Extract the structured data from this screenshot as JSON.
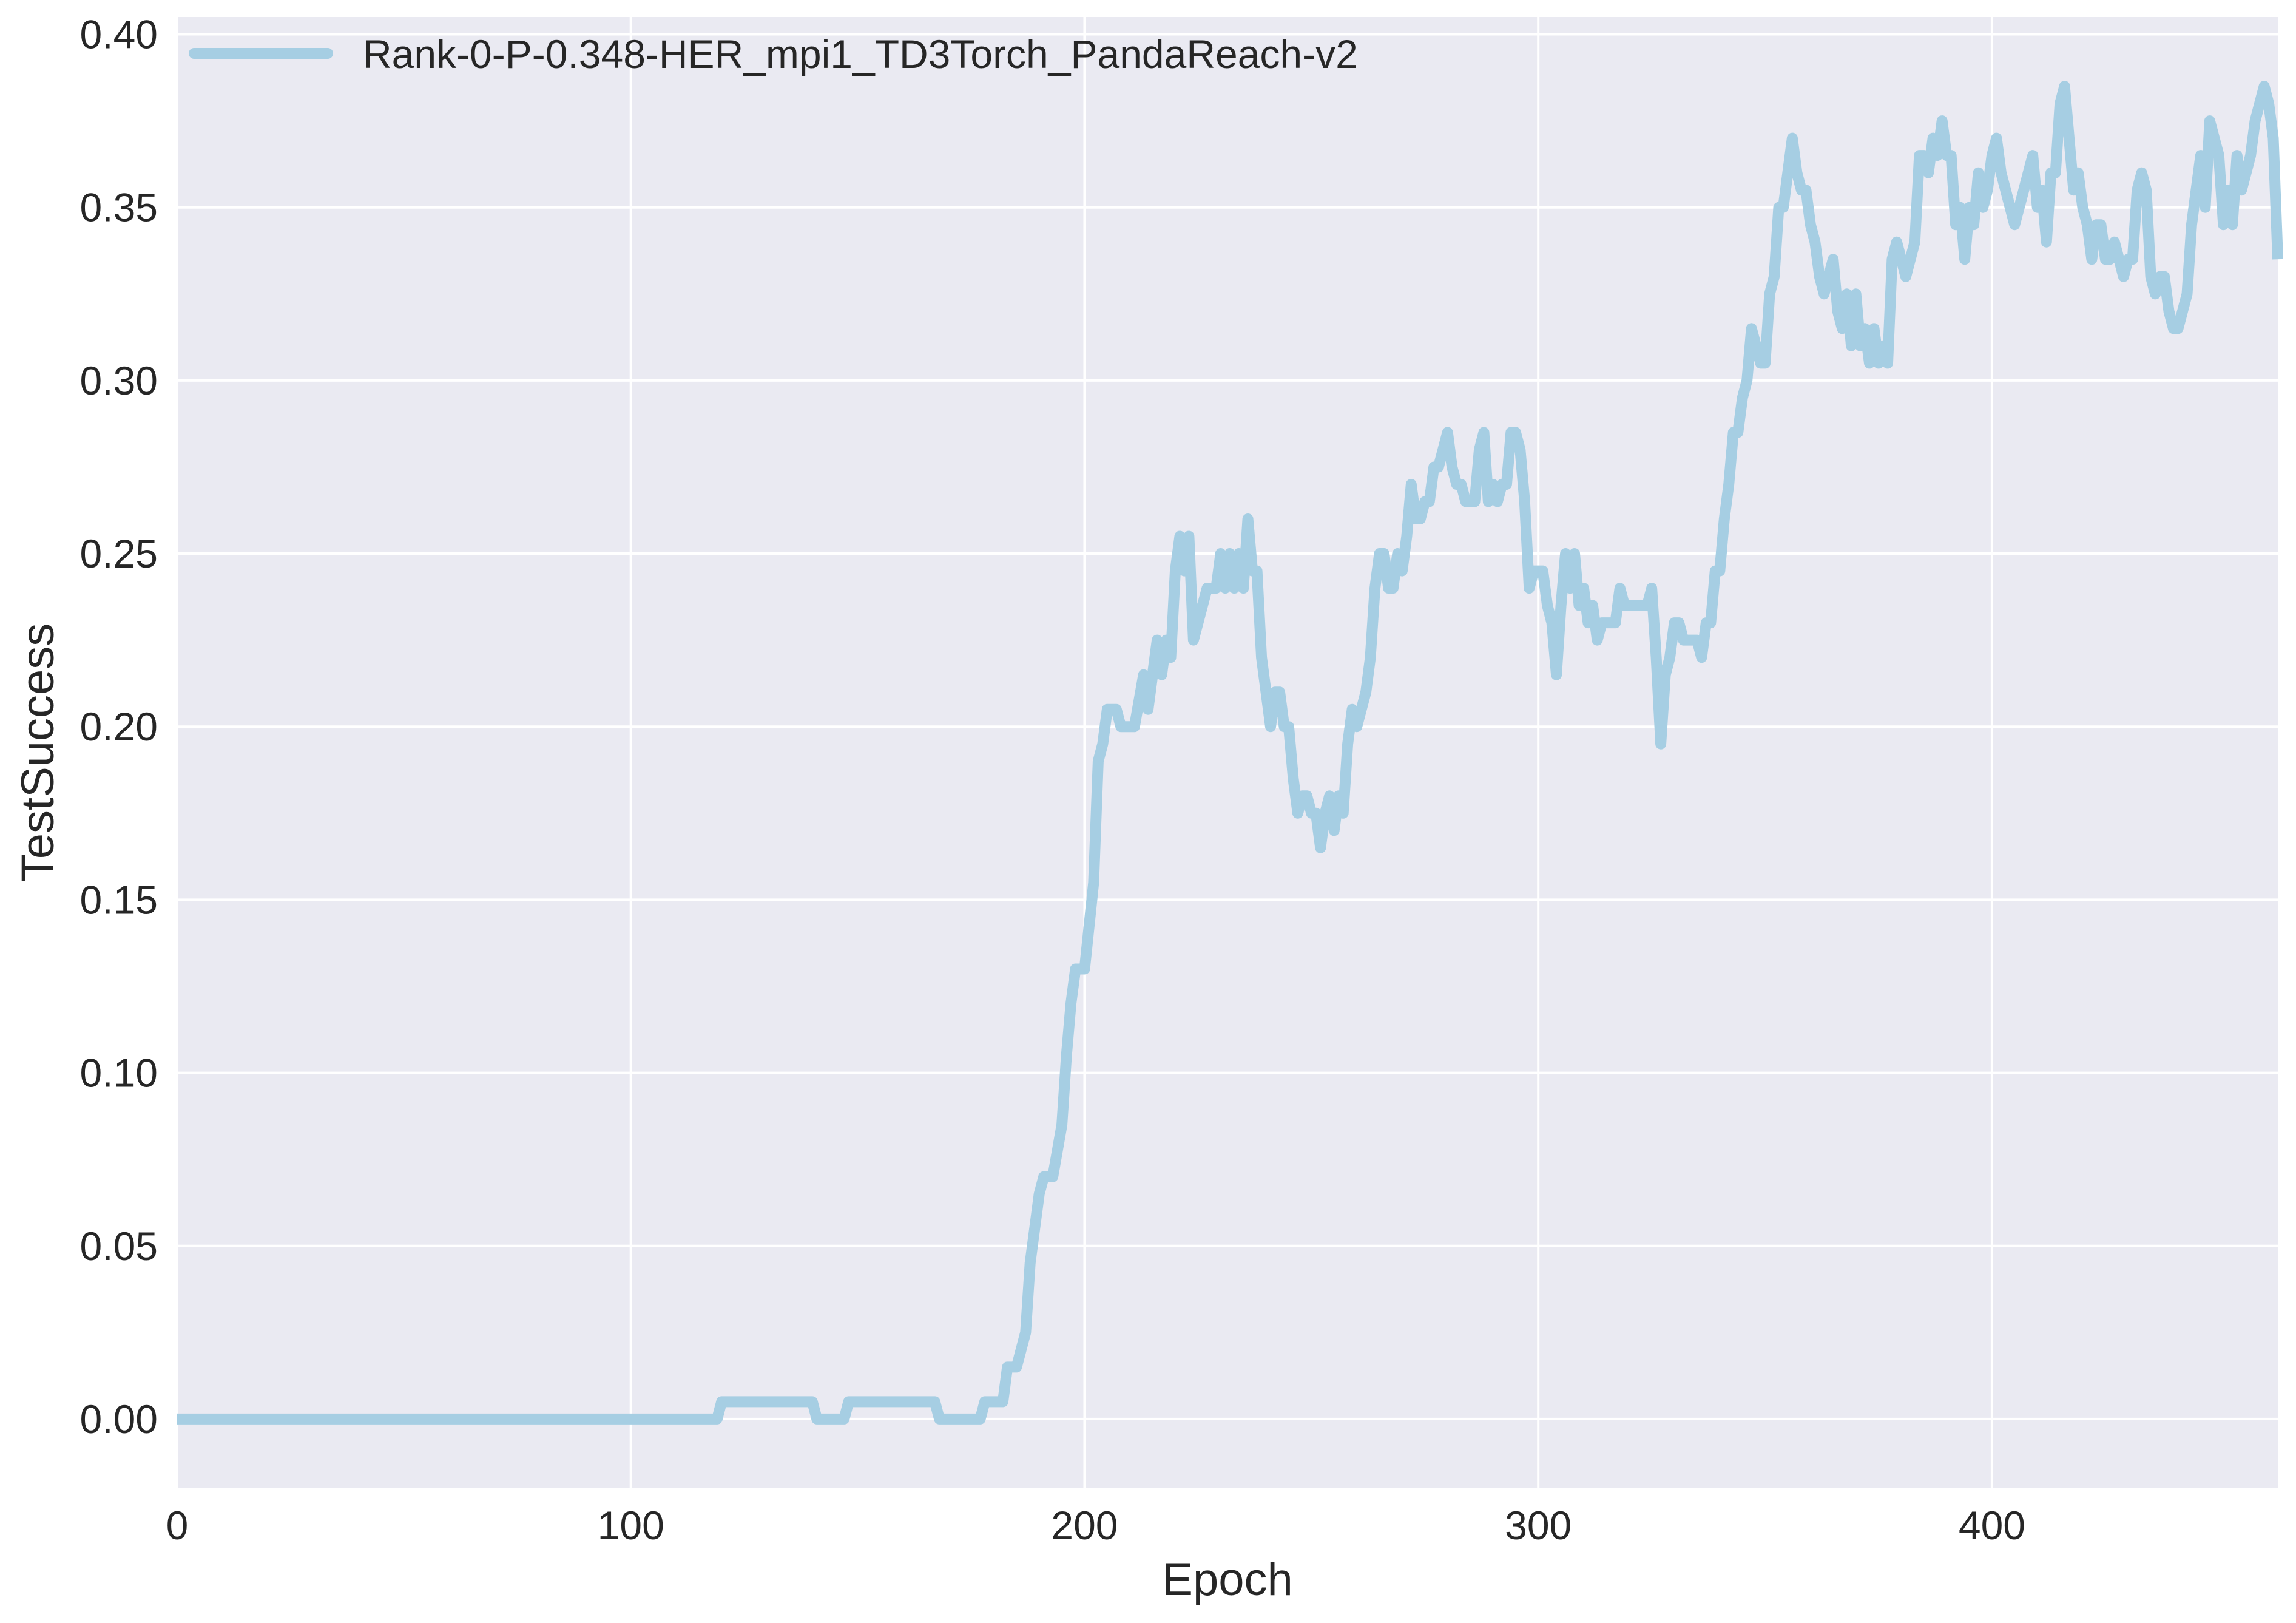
{
  "chart_data": {
    "type": "line",
    "xlabel": "Epoch",
    "ylabel": "TestSuccess",
    "xlim": [
      0,
      463
    ],
    "ylim": [
      -0.02,
      0.405
    ],
    "x_ticks": [
      0,
      100,
      200,
      300,
      400
    ],
    "y_ticks": [
      0.0,
      0.05,
      0.1,
      0.15,
      0.2,
      0.25,
      0.3,
      0.35,
      0.4
    ],
    "y_tick_labels": [
      "0.00",
      "0.05",
      "0.10",
      "0.15",
      "0.20",
      "0.25",
      "0.30",
      "0.35",
      "0.40"
    ],
    "grid": true,
    "legend_position": "top-left",
    "background": "#eaeaf2",
    "series": [
      {
        "name": "Rank-0-P-0.348-HER_mpi1_TD3Torch_PandaReach-v2",
        "color": "#a6cee3",
        "points": [
          [
            0,
            0.0
          ],
          [
            119,
            0.0
          ],
          [
            120,
            0.005
          ],
          [
            140,
            0.005
          ],
          [
            141,
            0.0
          ],
          [
            147,
            0.0
          ],
          [
            148,
            0.005
          ],
          [
            167,
            0.005
          ],
          [
            168,
            0.0
          ],
          [
            177,
            0.0
          ],
          [
            178,
            0.005
          ],
          [
            182,
            0.005
          ],
          [
            183,
            0.015
          ],
          [
            185,
            0.015
          ],
          [
            187,
            0.025
          ],
          [
            188,
            0.045
          ],
          [
            190,
            0.065
          ],
          [
            191,
            0.07
          ],
          [
            193,
            0.07
          ],
          [
            195,
            0.085
          ],
          [
            196,
            0.105
          ],
          [
            197,
            0.12
          ],
          [
            198,
            0.13
          ],
          [
            200,
            0.13
          ],
          [
            202,
            0.155
          ],
          [
            203,
            0.19
          ],
          [
            204,
            0.195
          ],
          [
            205,
            0.205
          ],
          [
            207,
            0.205
          ],
          [
            208,
            0.2
          ],
          [
            211,
            0.2
          ],
          [
            213,
            0.215
          ],
          [
            214,
            0.205
          ],
          [
            216,
            0.225
          ],
          [
            217,
            0.215
          ],
          [
            218,
            0.225
          ],
          [
            219,
            0.22
          ],
          [
            220,
            0.245
          ],
          [
            221,
            0.255
          ],
          [
            222,
            0.245
          ],
          [
            223,
            0.255
          ],
          [
            224,
            0.225
          ],
          [
            227,
            0.24
          ],
          [
            229,
            0.24
          ],
          [
            230,
            0.25
          ],
          [
            231,
            0.24
          ],
          [
            232,
            0.25
          ],
          [
            233,
            0.24
          ],
          [
            234,
            0.25
          ],
          [
            235,
            0.24
          ],
          [
            236,
            0.26
          ],
          [
            237,
            0.245
          ],
          [
            238,
            0.245
          ],
          [
            239,
            0.22
          ],
          [
            241,
            0.2
          ],
          [
            242,
            0.21
          ],
          [
            243,
            0.21
          ],
          [
            244,
            0.2
          ],
          [
            245,
            0.2
          ],
          [
            246,
            0.185
          ],
          [
            247,
            0.175
          ],
          [
            248,
            0.18
          ],
          [
            249,
            0.18
          ],
          [
            250,
            0.175
          ],
          [
            251,
            0.175
          ],
          [
            252,
            0.165
          ],
          [
            253,
            0.175
          ],
          [
            254,
            0.18
          ],
          [
            255,
            0.17
          ],
          [
            256,
            0.18
          ],
          [
            257,
            0.175
          ],
          [
            258,
            0.195
          ],
          [
            259,
            0.205
          ],
          [
            260,
            0.2
          ],
          [
            262,
            0.21
          ],
          [
            263,
            0.22
          ],
          [
            264,
            0.24
          ],
          [
            265,
            0.25
          ],
          [
            266,
            0.25
          ],
          [
            267,
            0.24
          ],
          [
            268,
            0.24
          ],
          [
            269,
            0.25
          ],
          [
            270,
            0.245
          ],
          [
            271,
            0.255
          ],
          [
            272,
            0.27
          ],
          [
            273,
            0.26
          ],
          [
            274,
            0.26
          ],
          [
            275,
            0.265
          ],
          [
            276,
            0.265
          ],
          [
            277,
            0.275
          ],
          [
            278,
            0.275
          ],
          [
            279,
            0.28
          ],
          [
            280,
            0.285
          ],
          [
            281,
            0.275
          ],
          [
            282,
            0.27
          ],
          [
            283,
            0.27
          ],
          [
            284,
            0.265
          ],
          [
            286,
            0.265
          ],
          [
            287,
            0.28
          ],
          [
            288,
            0.285
          ],
          [
            289,
            0.265
          ],
          [
            290,
            0.27
          ],
          [
            291,
            0.265
          ],
          [
            292,
            0.27
          ],
          [
            293,
            0.27
          ],
          [
            294,
            0.285
          ],
          [
            295,
            0.285
          ],
          [
            296,
            0.28
          ],
          [
            297,
            0.265
          ],
          [
            298,
            0.24
          ],
          [
            299,
            0.245
          ],
          [
            301,
            0.245
          ],
          [
            302,
            0.235
          ],
          [
            303,
            0.23
          ],
          [
            304,
            0.215
          ],
          [
            305,
            0.235
          ],
          [
            306,
            0.25
          ],
          [
            307,
            0.24
          ],
          [
            308,
            0.25
          ],
          [
            309,
            0.235
          ],
          [
            310,
            0.24
          ],
          [
            311,
            0.23
          ],
          [
            312,
            0.235
          ],
          [
            313,
            0.225
          ],
          [
            314,
            0.23
          ],
          [
            317,
            0.23
          ],
          [
            318,
            0.24
          ],
          [
            319,
            0.235
          ],
          [
            324,
            0.235
          ],
          [
            325,
            0.24
          ],
          [
            326,
            0.22
          ],
          [
            327,
            0.195
          ],
          [
            328,
            0.215
          ],
          [
            329,
            0.22
          ],
          [
            330,
            0.23
          ],
          [
            331,
            0.23
          ],
          [
            332,
            0.225
          ],
          [
            335,
            0.225
          ],
          [
            336,
            0.22
          ],
          [
            337,
            0.23
          ],
          [
            338,
            0.23
          ],
          [
            339,
            0.245
          ],
          [
            340,
            0.245
          ],
          [
            341,
            0.26
          ],
          [
            342,
            0.27
          ],
          [
            343,
            0.285
          ],
          [
            344,
            0.285
          ],
          [
            345,
            0.295
          ],
          [
            346,
            0.3
          ],
          [
            347,
            0.315
          ],
          [
            348,
            0.31
          ],
          [
            349,
            0.305
          ],
          [
            350,
            0.305
          ],
          [
            351,
            0.325
          ],
          [
            352,
            0.33
          ],
          [
            353,
            0.35
          ],
          [
            354,
            0.35
          ],
          [
            355,
            0.36
          ],
          [
            356,
            0.37
          ],
          [
            357,
            0.36
          ],
          [
            358,
            0.355
          ],
          [
            359,
            0.355
          ],
          [
            360,
            0.345
          ],
          [
            361,
            0.34
          ],
          [
            362,
            0.33
          ],
          [
            363,
            0.325
          ],
          [
            364,
            0.33
          ],
          [
            365,
            0.335
          ],
          [
            366,
            0.32
          ],
          [
            367,
            0.315
          ],
          [
            368,
            0.325
          ],
          [
            369,
            0.31
          ],
          [
            370,
            0.325
          ],
          [
            371,
            0.31
          ],
          [
            372,
            0.315
          ],
          [
            373,
            0.305
          ],
          [
            374,
            0.315
          ],
          [
            375,
            0.305
          ],
          [
            376,
            0.31
          ],
          [
            377,
            0.305
          ],
          [
            378,
            0.335
          ],
          [
            379,
            0.34
          ],
          [
            380,
            0.335
          ],
          [
            381,
            0.33
          ],
          [
            382,
            0.335
          ],
          [
            383,
            0.34
          ],
          [
            384,
            0.365
          ],
          [
            385,
            0.365
          ],
          [
            386,
            0.36
          ],
          [
            387,
            0.37
          ],
          [
            388,
            0.365
          ],
          [
            389,
            0.375
          ],
          [
            390,
            0.365
          ],
          [
            391,
            0.365
          ],
          [
            392,
            0.345
          ],
          [
            393,
            0.35
          ],
          [
            394,
            0.335
          ],
          [
            395,
            0.35
          ],
          [
            396,
            0.345
          ],
          [
            397,
            0.36
          ],
          [
            398,
            0.35
          ],
          [
            399,
            0.355
          ],
          [
            400,
            0.365
          ],
          [
            401,
            0.37
          ],
          [
            402,
            0.36
          ],
          [
            403,
            0.355
          ],
          [
            404,
            0.35
          ],
          [
            405,
            0.345
          ],
          [
            406,
            0.35
          ],
          [
            407,
            0.355
          ],
          [
            408,
            0.36
          ],
          [
            409,
            0.365
          ],
          [
            410,
            0.35
          ],
          [
            411,
            0.355
          ],
          [
            412,
            0.34
          ],
          [
            413,
            0.36
          ],
          [
            414,
            0.36
          ],
          [
            415,
            0.38
          ],
          [
            416,
            0.385
          ],
          [
            417,
            0.37
          ],
          [
            418,
            0.355
          ],
          [
            419,
            0.36
          ],
          [
            420,
            0.35
          ],
          [
            421,
            0.345
          ],
          [
            422,
            0.335
          ],
          [
            423,
            0.345
          ],
          [
            424,
            0.345
          ],
          [
            425,
            0.335
          ],
          [
            426,
            0.335
          ],
          [
            427,
            0.34
          ],
          [
            428,
            0.335
          ],
          [
            429,
            0.33
          ],
          [
            430,
            0.335
          ],
          [
            431,
            0.335
          ],
          [
            432,
            0.355
          ],
          [
            433,
            0.36
          ],
          [
            434,
            0.355
          ],
          [
            435,
            0.33
          ],
          [
            436,
            0.325
          ],
          [
            437,
            0.33
          ],
          [
            438,
            0.33
          ],
          [
            439,
            0.32
          ],
          [
            440,
            0.315
          ],
          [
            441,
            0.315
          ],
          [
            442,
            0.32
          ],
          [
            443,
            0.325
          ],
          [
            444,
            0.345
          ],
          [
            445,
            0.355
          ],
          [
            446,
            0.365
          ],
          [
            447,
            0.35
          ],
          [
            448,
            0.375
          ],
          [
            449,
            0.37
          ],
          [
            450,
            0.365
          ],
          [
            451,
            0.345
          ],
          [
            452,
            0.355
          ],
          [
            453,
            0.345
          ],
          [
            454,
            0.365
          ],
          [
            455,
            0.355
          ],
          [
            456,
            0.36
          ],
          [
            457,
            0.365
          ],
          [
            458,
            0.375
          ],
          [
            459,
            0.38
          ],
          [
            460,
            0.385
          ],
          [
            461,
            0.38
          ],
          [
            462,
            0.37
          ],
          [
            463,
            0.335
          ]
        ]
      }
    ]
  }
}
